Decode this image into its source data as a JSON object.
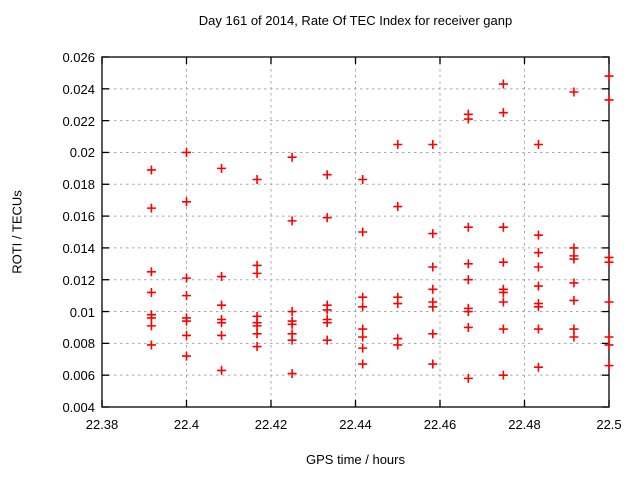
{
  "title": "Day 161 of 2014, Rate Of TEC Index for receiver ganp",
  "x_axis": {
    "label": "GPS time / hours",
    "tick_labels": [
      "22.38",
      "22.4",
      "22.42",
      "22.44",
      "22.46",
      "22.48",
      "22.5"
    ],
    "ticks": [
      22.38,
      22.4,
      22.42,
      22.44,
      22.46,
      22.48,
      22.5
    ]
  },
  "y_axis": {
    "label": "ROTI / TECUs",
    "tick_labels": [
      "0.004",
      "0.006",
      "0.008",
      "0.01",
      "0.012",
      "0.014",
      "0.016",
      "0.018",
      "0.02",
      "0.022",
      "0.024",
      "0.026"
    ],
    "ticks": [
      0.004,
      0.006,
      0.008,
      0.01,
      0.012,
      0.014,
      0.016,
      0.018,
      0.02,
      0.022,
      0.024,
      0.026
    ]
  },
  "style": {
    "marker_color": "#ff0000",
    "grid_color": "#a8a8a8",
    "axis_color": "#000000",
    "background": "#ffffff"
  },
  "chart_data": {
    "type": "scatter",
    "title": "Day 161 of 2014, Rate Of TEC Index for receiver ganp",
    "xlabel": "GPS time / hours",
    "ylabel": "ROTI / TECUs",
    "xlim": [
      22.38,
      22.5
    ],
    "ylim": [
      0.004,
      0.026
    ],
    "grid": true,
    "legend": false,
    "marker": "plus",
    "series": [
      {
        "name": "ROTI",
        "color": "#ff0000",
        "points": [
          [
            22.3917,
            0.0189
          ],
          [
            22.3917,
            0.0165
          ],
          [
            22.3917,
            0.0125
          ],
          [
            22.3917,
            0.0112
          ],
          [
            22.3917,
            0.0098
          ],
          [
            22.3917,
            0.0096
          ],
          [
            22.3917,
            0.0091
          ],
          [
            22.3917,
            0.0079
          ],
          [
            22.4,
            0.02
          ],
          [
            22.4,
            0.0169
          ],
          [
            22.4,
            0.0121
          ],
          [
            22.4,
            0.011
          ],
          [
            22.4,
            0.0096
          ],
          [
            22.4,
            0.0094
          ],
          [
            22.4,
            0.0085
          ],
          [
            22.4,
            0.0072
          ],
          [
            22.4083,
            0.019
          ],
          [
            22.4083,
            0.0122
          ],
          [
            22.4083,
            0.0104
          ],
          [
            22.4083,
            0.0095
          ],
          [
            22.4083,
            0.0093
          ],
          [
            22.4083,
            0.0085
          ],
          [
            22.4083,
            0.0063
          ],
          [
            22.4167,
            0.0183
          ],
          [
            22.4167,
            0.0129
          ],
          [
            22.4167,
            0.0124
          ],
          [
            22.4167,
            0.0097
          ],
          [
            22.4167,
            0.0093
          ],
          [
            22.4167,
            0.0091
          ],
          [
            22.4167,
            0.0086
          ],
          [
            22.4167,
            0.0078
          ],
          [
            22.425,
            0.0197
          ],
          [
            22.425,
            0.0157
          ],
          [
            22.425,
            0.01
          ],
          [
            22.425,
            0.0094
          ],
          [
            22.425,
            0.0092
          ],
          [
            22.425,
            0.0086
          ],
          [
            22.425,
            0.0082
          ],
          [
            22.425,
            0.0061
          ],
          [
            22.4333,
            0.0186
          ],
          [
            22.4333,
            0.0159
          ],
          [
            22.4333,
            0.0104
          ],
          [
            22.4333,
            0.0101
          ],
          [
            22.4333,
            0.0095
          ],
          [
            22.4333,
            0.0093
          ],
          [
            22.4333,
            0.0082
          ],
          [
            22.4417,
            0.0183
          ],
          [
            22.4417,
            0.015
          ],
          [
            22.4417,
            0.0109
          ],
          [
            22.4417,
            0.0103
          ],
          [
            22.4417,
            0.0089
          ],
          [
            22.4417,
            0.0084
          ],
          [
            22.4417,
            0.0077
          ],
          [
            22.4417,
            0.0067
          ],
          [
            22.45,
            0.0205
          ],
          [
            22.45,
            0.0166
          ],
          [
            22.45,
            0.0109
          ],
          [
            22.45,
            0.0105
          ],
          [
            22.45,
            0.0083
          ],
          [
            22.45,
            0.0079
          ],
          [
            22.4583,
            0.0205
          ],
          [
            22.4583,
            0.0149
          ],
          [
            22.4583,
            0.0128
          ],
          [
            22.4583,
            0.0114
          ],
          [
            22.4583,
            0.0106
          ],
          [
            22.4583,
            0.0103
          ],
          [
            22.4583,
            0.0086
          ],
          [
            22.4583,
            0.0067
          ],
          [
            22.4667,
            0.0224
          ],
          [
            22.4667,
            0.0221
          ],
          [
            22.4667,
            0.0153
          ],
          [
            22.4667,
            0.013
          ],
          [
            22.4667,
            0.012
          ],
          [
            22.4667,
            0.0102
          ],
          [
            22.4667,
            0.01
          ],
          [
            22.4667,
            0.009
          ],
          [
            22.4667,
            0.0058
          ],
          [
            22.475,
            0.0243
          ],
          [
            22.475,
            0.0225
          ],
          [
            22.475,
            0.0153
          ],
          [
            22.475,
            0.0131
          ],
          [
            22.475,
            0.0114
          ],
          [
            22.475,
            0.0112
          ],
          [
            22.475,
            0.0106
          ],
          [
            22.475,
            0.0089
          ],
          [
            22.475,
            0.006
          ],
          [
            22.4833,
            0.0205
          ],
          [
            22.4833,
            0.0148
          ],
          [
            22.4833,
            0.0137
          ],
          [
            22.4833,
            0.0128
          ],
          [
            22.4833,
            0.0116
          ],
          [
            22.4833,
            0.0105
          ],
          [
            22.4833,
            0.0103
          ],
          [
            22.4833,
            0.0089
          ],
          [
            22.4833,
            0.0065
          ],
          [
            22.4917,
            0.0238
          ],
          [
            22.4917,
            0.014
          ],
          [
            22.4917,
            0.0135
          ],
          [
            22.4917,
            0.0133
          ],
          [
            22.4917,
            0.0118
          ],
          [
            22.4917,
            0.0107
          ],
          [
            22.4917,
            0.0089
          ],
          [
            22.4917,
            0.0084
          ],
          [
            22.5,
            0.0248
          ],
          [
            22.5,
            0.0233
          ],
          [
            22.5,
            0.0134
          ],
          [
            22.5,
            0.0131
          ],
          [
            22.5,
            0.0106
          ],
          [
            22.5,
            0.0084
          ],
          [
            22.5,
            0.0079
          ],
          [
            22.5,
            0.0066
          ]
        ]
      }
    ]
  }
}
